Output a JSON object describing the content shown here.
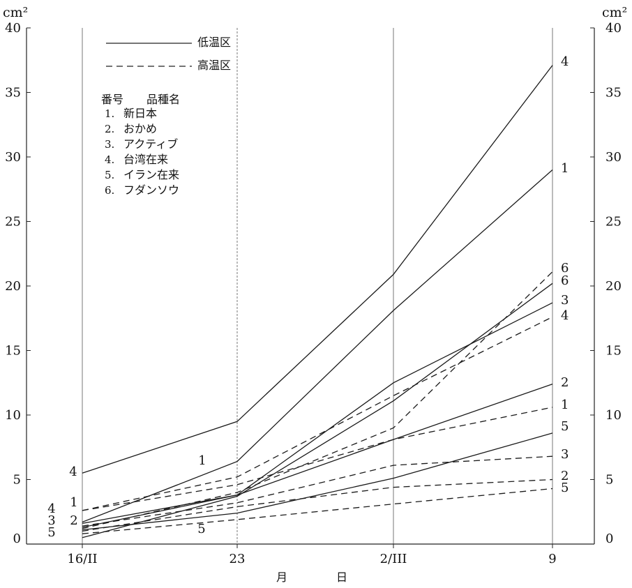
{
  "chart_data": {
    "type": "line",
    "y_unit_left": "cm²",
    "y_unit_right": "cm²",
    "xlabel_parts": [
      "月",
      "日"
    ],
    "ylim": [
      0,
      40
    ],
    "yticks": [
      0,
      5,
      10,
      15,
      20,
      25,
      30,
      35,
      40
    ],
    "x": [
      "16/II",
      "23",
      "2/III",
      "9"
    ],
    "legend": {
      "solid_label": "低温区",
      "dashed_label": "高温区",
      "header_no": "番号",
      "header_name": "品種名",
      "varieties": [
        {
          "no": "1.",
          "name": "新日本"
        },
        {
          "no": "2.",
          "name": "おかめ"
        },
        {
          "no": "3.",
          "name": "アクティブ"
        },
        {
          "no": "4.",
          "name": "台湾在来"
        },
        {
          "no": "5.",
          "name": "イラン在来"
        },
        {
          "no": "6.",
          "name": "フダンソウ"
        }
      ]
    },
    "series": [
      {
        "name": "4",
        "style": "solid",
        "values": [
          5.5,
          9.5,
          20.9,
          37.1
        ]
      },
      {
        "name": "1",
        "style": "solid",
        "values": [
          1.7,
          6.4,
          18.1,
          29.0
        ]
      },
      {
        "name": "6",
        "style": "solid",
        "values": [
          0.5,
          3.7,
          11.1,
          20.2
        ]
      },
      {
        "name": "3",
        "style": "solid",
        "values": [
          1.3,
          3.8,
          12.5,
          18.7
        ]
      },
      {
        "name": "2",
        "style": "solid",
        "values": [
          1.6,
          3.8,
          8.1,
          12.4
        ]
      },
      {
        "name": "5",
        "style": "solid",
        "values": [
          1.1,
          2.4,
          5.1,
          8.6
        ]
      },
      {
        "name": "6",
        "style": "dashed",
        "values": [
          1.2,
          4.0,
          9.0,
          21.1
        ]
      },
      {
        "name": "4",
        "style": "dashed",
        "values": [
          2.6,
          5.2,
          11.5,
          17.6
        ]
      },
      {
        "name": "1",
        "style": "dashed",
        "values": [
          2.6,
          4.6,
          8.1,
          10.6
        ]
      },
      {
        "name": "3",
        "style": "dashed",
        "values": [
          1.4,
          3.2,
          6.1,
          6.8
        ]
      },
      {
        "name": "2",
        "style": "dashed",
        "values": [
          1.0,
          2.9,
          4.4,
          5.0
        ]
      },
      {
        "name": "5",
        "style": "dashed",
        "values": [
          0.8,
          1.9,
          3.1,
          4.3
        ]
      }
    ],
    "start_labels": [
      "4",
      "1",
      "4",
      "3",
      "2",
      "5"
    ],
    "mid_labels": [
      "1",
      "5"
    ],
    "end_labels": [
      "4",
      "1",
      "6",
      "6",
      "3",
      "4",
      "2",
      "1",
      "5",
      "3",
      "2",
      "5"
    ]
  }
}
